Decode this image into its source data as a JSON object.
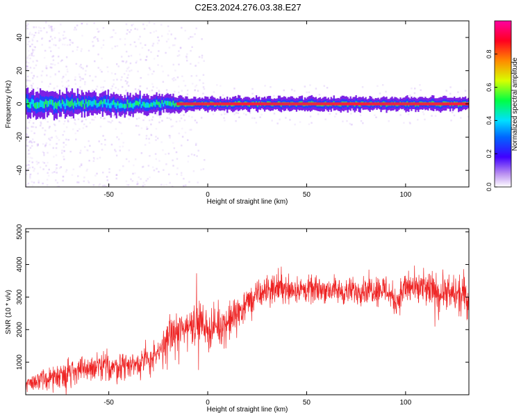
{
  "title": "C2E3.2024.276.03.38.E27",
  "colors": {
    "snr_line": "#ee2222",
    "ridge_core": "#ff1a3a",
    "ridge_mid": "#22ee66",
    "ridge_blue": "#2244ff",
    "ridge_purple": "#6a00e0",
    "scatter_purple": "#c8a6f5",
    "axis": "#000000",
    "background": "#ffffff"
  },
  "chart_data": [
    {
      "type": "heatmap",
      "title": "",
      "xlabel": "Height of straight line (km)",
      "ylabel": "Frequency (Hz)",
      "xlim": [
        -92,
        132
      ],
      "ylim": [
        -50,
        50
      ],
      "x_ticks": [
        -50,
        0,
        50,
        100
      ],
      "x_tick_labels": [
        "-50",
        "0",
        "50",
        "100"
      ],
      "y_ticks": [
        -40,
        -20,
        0,
        20,
        40
      ],
      "y_tick_labels": [
        "-40",
        "-20",
        "0",
        "20",
        "40"
      ],
      "colorbar": {
        "label": "Normalized spectral amplitude",
        "range": [
          0.0,
          1.0
        ],
        "ticks": [
          0.0,
          0.2,
          0.4,
          0.6,
          0.8
        ],
        "tick_labels": [
          "0.0",
          "0.2",
          "0.4",
          "0.6",
          "0.8"
        ],
        "colormap": "rainbow (white-purple-blue-cyan-green-yellow-red-magenta)"
      },
      "ridge": {
        "center_frequency_hz": 0,
        "description_points": [
          {
            "x": -92,
            "peak_amplitude": 0.5,
            "halfwidth_hz": 6
          },
          {
            "x": -60,
            "peak_amplitude": 0.5,
            "halfwidth_hz": 5
          },
          {
            "x": -20,
            "peak_amplitude": 0.55,
            "halfwidth_hz": 4
          },
          {
            "x": -10,
            "peak_amplitude": 0.9,
            "halfwidth_hz": 3
          },
          {
            "x": 50,
            "peak_amplitude": 0.9,
            "halfwidth_hz": 3
          },
          {
            "x": 132,
            "peak_amplitude": 0.9,
            "halfwidth_hz": 3
          }
        ]
      },
      "grid": false
    },
    {
      "type": "line",
      "title": "",
      "xlabel": "Height of straight line (km)",
      "ylabel": "SNR (10 * v/v)",
      "xlim": [
        -92,
        132
      ],
      "ylim": [
        0,
        5100
      ],
      "x_ticks": [
        -50,
        0,
        50,
        100
      ],
      "x_tick_labels": [
        "-50",
        "0",
        "50",
        "100"
      ],
      "y_ticks": [
        1000,
        2000,
        3000,
        4000,
        5000
      ],
      "y_tick_labels": [
        "1000",
        "2000",
        "3000",
        "4000",
        "5000"
      ],
      "series": [
        {
          "x": [
            -92,
            -80,
            -70,
            -60,
            -50,
            -40,
            -30,
            -25,
            -20,
            -15,
            -10,
            -5,
            0,
            5,
            10,
            15,
            20,
            25,
            30,
            35,
            40,
            50,
            60,
            70,
            80,
            90,
            95,
            100,
            110,
            120,
            132
          ],
          "y_mean": [
            350,
            500,
            700,
            800,
            850,
            900,
            1050,
            1200,
            1800,
            1900,
            2100,
            2300,
            2000,
            2100,
            2200,
            2500,
            2800,
            3050,
            3200,
            3300,
            3250,
            3200,
            3250,
            3150,
            3250,
            3250,
            2850,
            3300,
            3200,
            3100,
            3000
          ],
          "y_spread": [
            350,
            500,
            650,
            650,
            650,
            650,
            650,
            700,
            900,
            900,
            1000,
            1000,
            900,
            900,
            900,
            800,
            700,
            650,
            650,
            650,
            650,
            600,
            600,
            600,
            650,
            700,
            700,
            800,
            800,
            800,
            800
          ]
        }
      ],
      "grid": false
    }
  ]
}
